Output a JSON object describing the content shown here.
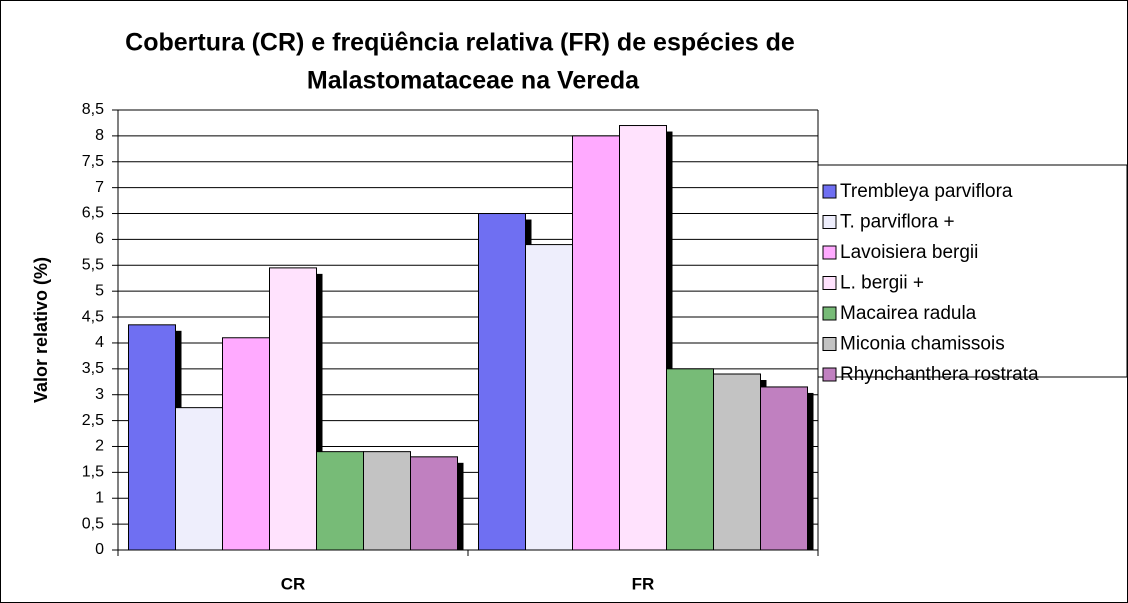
{
  "chart_data": {
    "type": "bar",
    "title": [
      "Cobertura (CR) e freqüência relativa (FR) de espécies de",
      "Malastomataceae na Vereda"
    ],
    "y_label": "Valor relativo (%)",
    "categories": [
      "CR",
      "FR"
    ],
    "series": [
      {
        "name": "Trembleya parviflora",
        "color": "#6f6ff2",
        "values": [
          4.35,
          6.5
        ]
      },
      {
        "name": "T. parviflora +",
        "color": "#eeeefc",
        "values": [
          2.75,
          5.9
        ]
      },
      {
        "name": "Lavoisiera bergii",
        "color": "#ffaaff",
        "values": [
          4.1,
          8.0
        ]
      },
      {
        "name": "L. bergii +",
        "color": "#ffe2fd",
        "values": [
          5.45,
          8.2
        ]
      },
      {
        "name": "Macairea radula",
        "color": "#77bb77",
        "values": [
          1.9,
          3.5
        ]
      },
      {
        "name": "Miconia chamissois",
        "color": "#c3c3c3",
        "values": [
          1.9,
          3.4
        ]
      },
      {
        "name": "Rhynchanthera rostrata",
        "color": "#c080c0",
        "values": [
          1.8,
          3.15
        ]
      }
    ],
    "ylim": [
      0,
      8.5
    ],
    "yticks": [
      0,
      {
        "value": 0.5,
        "label": "0,5"
      },
      1,
      {
        "value": 1.5,
        "label": "1,5"
      },
      2,
      {
        "value": 2.5,
        "label": "2,5"
      },
      3,
      {
        "value": 3.5,
        "label": "3,5"
      },
      4,
      {
        "value": 4.5,
        "label": "4,5"
      },
      5,
      {
        "value": 5.5,
        "label": "5,5"
      },
      6,
      {
        "value": 6.5,
        "label": "6,5"
      },
      7,
      {
        "value": 7.5,
        "label": "7,5"
      },
      8,
      {
        "value": 8.5,
        "label": "8,5"
      }
    ],
    "grid": true,
    "legend": "right"
  }
}
